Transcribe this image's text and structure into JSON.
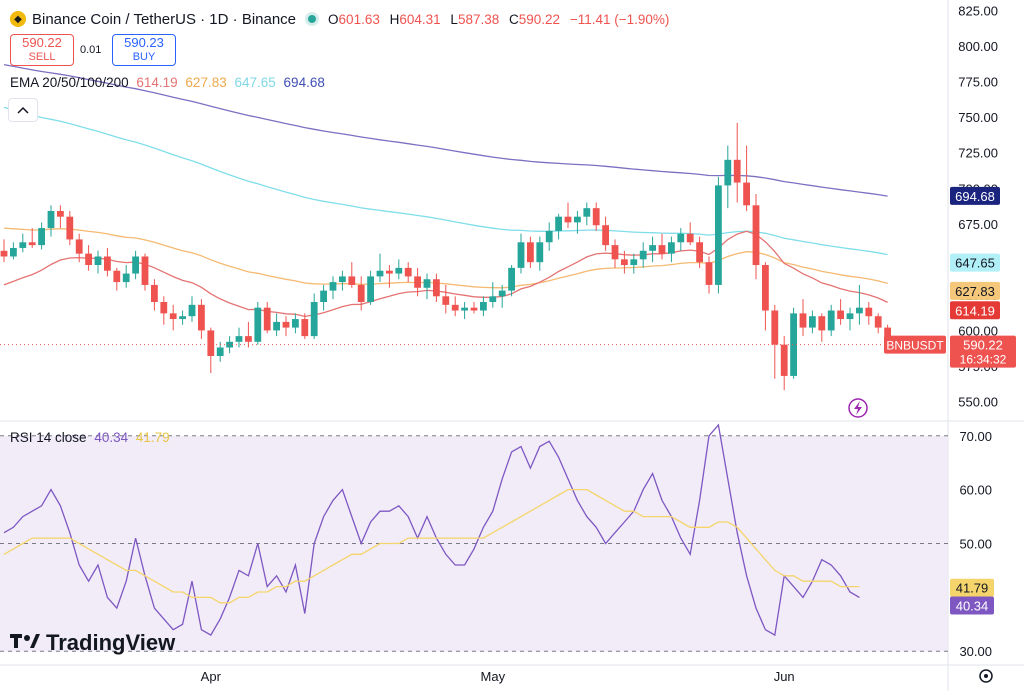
{
  "header": {
    "symbol_title": "Binance Coin / TetherUS · 1D · Binance",
    "ohlc": [
      {
        "k": "O",
        "v": "601.63"
      },
      {
        "k": "H",
        "v": "604.31"
      },
      {
        "k": "L",
        "v": "587.38"
      },
      {
        "k": "C",
        "v": "590.22"
      }
    ],
    "change": "−11.41 (−1.90%)"
  },
  "trade": {
    "sell_price": "590.22",
    "sell_label": "SELL",
    "spread": "0.01",
    "buy_price": "590.23",
    "buy_label": "BUY"
  },
  "ema_legend": {
    "label": "EMA 20/50/100/200",
    "v20": "614.19",
    "v50": "627.83",
    "v100": "647.65",
    "v200": "694.68"
  },
  "rsi_legend": {
    "label": "RSI 14 close",
    "rsi": "40.34",
    "ma": "41.79"
  },
  "brand": {
    "name": "TradingView"
  },
  "colors": {
    "up": "#26a69a",
    "down": "#ef5350",
    "ema20": "#e57373",
    "ema50": "#f5b971",
    "ema100": "#80deea",
    "ema200": "#7e6fc2",
    "rsi": "#7e57c2",
    "rsi_ma": "#f5d56b",
    "rsi_band": "#ede7f6"
  },
  "chart_data": [
    {
      "type": "candlestick",
      "title": "Binance Coin / TetherUS · 1D · Binance",
      "y_ticks": [
        "825.00",
        "800.00",
        "775.00",
        "750.00",
        "725.00",
        "700.00",
        "675.00",
        "650.00",
        "625.00",
        "600.00",
        "575.00",
        "550.00"
      ],
      "ylim": [
        537,
        831
      ],
      "x_labels": [
        {
          "label": "Apr",
          "index": 22
        },
        {
          "label": "May",
          "index": 52
        },
        {
          "label": "Jun",
          "index": 83
        }
      ],
      "ohlc": [
        [
          656,
          664,
          648,
          652
        ],
        [
          652,
          662,
          650,
          658
        ],
        [
          658,
          668,
          655,
          662
        ],
        [
          662,
          672,
          658,
          660
        ],
        [
          660,
          676,
          657,
          672
        ],
        [
          672,
          688,
          666,
          684
        ],
        [
          684,
          688,
          672,
          680
        ],
        [
          680,
          684,
          660,
          664
        ],
        [
          664,
          668,
          648,
          654
        ],
        [
          654,
          660,
          642,
          646
        ],
        [
          646,
          656,
          640,
          652
        ],
        [
          652,
          658,
          638,
          642
        ],
        [
          642,
          644,
          628,
          634
        ],
        [
          634,
          646,
          630,
          640
        ],
        [
          640,
          656,
          636,
          652
        ],
        [
          652,
          654,
          628,
          632
        ],
        [
          632,
          636,
          614,
          620
        ],
        [
          620,
          624,
          604,
          612
        ],
        [
          612,
          618,
          600,
          608
        ],
        [
          608,
          614,
          604,
          610
        ],
        [
          610,
          624,
          606,
          618
        ],
        [
          618,
          622,
          594,
          600
        ],
        [
          600,
          602,
          570,
          582
        ],
        [
          582,
          592,
          578,
          588
        ],
        [
          588,
          596,
          584,
          592
        ],
        [
          592,
          602,
          588,
          596
        ],
        [
          596,
          606,
          588,
          592
        ],
        [
          592,
          620,
          590,
          616
        ],
        [
          616,
          620,
          598,
          600
        ],
        [
          600,
          612,
          596,
          606
        ],
        [
          606,
          610,
          596,
          602
        ],
        [
          602,
          612,
          598,
          608
        ],
        [
          608,
          612,
          594,
          596
        ],
        [
          596,
          626,
          594,
          620
        ],
        [
          620,
          632,
          614,
          628
        ],
        [
          628,
          638,
          622,
          634
        ],
        [
          634,
          642,
          628,
          638
        ],
        [
          638,
          648,
          630,
          632
        ],
        [
          632,
          638,
          614,
          620
        ],
        [
          620,
          642,
          618,
          638
        ],
        [
          638,
          654,
          634,
          642
        ],
        [
          642,
          646,
          630,
          640
        ],
        [
          640,
          650,
          636,
          644
        ],
        [
          644,
          648,
          634,
          638
        ],
        [
          638,
          644,
          624,
          630
        ],
        [
          630,
          640,
          622,
          636
        ],
        [
          636,
          640,
          620,
          624
        ],
        [
          624,
          632,
          612,
          618
        ],
        [
          618,
          624,
          610,
          614
        ],
        [
          614,
          620,
          608,
          616
        ],
        [
          616,
          620,
          612,
          614
        ],
        [
          614,
          624,
          610,
          620
        ],
        [
          620,
          634,
          616,
          624
        ],
        [
          624,
          632,
          616,
          628
        ],
        [
          628,
          646,
          624,
          644
        ],
        [
          644,
          668,
          640,
          662
        ],
        [
          662,
          666,
          644,
          648
        ],
        [
          648,
          666,
          642,
          662
        ],
        [
          662,
          676,
          656,
          670
        ],
        [
          670,
          682,
          664,
          680
        ],
        [
          680,
          690,
          672,
          676
        ],
        [
          676,
          684,
          668,
          680
        ],
        [
          680,
          690,
          674,
          686
        ],
        [
          686,
          690,
          670,
          674
        ],
        [
          674,
          680,
          656,
          660
        ],
        [
          660,
          664,
          644,
          650
        ],
        [
          650,
          656,
          640,
          646
        ],
        [
          646,
          654,
          640,
          650
        ],
        [
          650,
          662,
          644,
          656
        ],
        [
          656,
          666,
          648,
          660
        ],
        [
          660,
          668,
          650,
          654
        ],
        [
          654,
          666,
          648,
          662
        ],
        [
          662,
          672,
          656,
          668
        ],
        [
          668,
          676,
          660,
          662
        ],
        [
          662,
          666,
          644,
          648
        ],
        [
          648,
          652,
          626,
          632
        ],
        [
          632,
          708,
          626,
          702
        ],
        [
          702,
          730,
          686,
          720
        ],
        [
          720,
          746,
          690,
          704
        ],
        [
          704,
          730,
          684,
          688
        ],
        [
          688,
          696,
          636,
          646
        ],
        [
          646,
          648,
          600,
          614
        ],
        [
          614,
          618,
          566,
          590
        ],
        [
          590,
          596,
          558,
          568
        ],
        [
          568,
          616,
          566,
          612
        ],
        [
          612,
          622,
          596,
          602
        ],
        [
          602,
          614,
          598,
          610
        ],
        [
          610,
          612,
          592,
          600
        ],
        [
          600,
          618,
          596,
          614
        ],
        [
          614,
          622,
          604,
          608
        ],
        [
          608,
          616,
          600,
          612
        ],
        [
          612,
          632,
          604,
          616
        ],
        [
          616,
          620,
          604,
          610
        ],
        [
          610,
          612,
          598,
          602
        ],
        [
          602,
          604,
          587,
          590
        ]
      ]
    },
    {
      "type": "line",
      "title": "RSI 14 close",
      "y_ticks": [
        "70.00",
        "60.00",
        "50.00",
        "40.00",
        "30.00"
      ],
      "ylim": [
        28,
        72
      ],
      "series": [
        {
          "name": "RSI",
          "values": [
            52,
            53,
            55,
            56,
            57,
            60,
            57,
            52,
            46,
            43,
            46,
            40,
            38,
            43,
            51,
            44,
            38,
            36,
            34,
            35,
            43,
            34,
            33,
            36,
            40,
            45,
            44,
            50,
            42,
            44,
            41,
            46,
            37,
            50,
            55,
            58,
            60,
            55,
            50,
            54,
            56,
            56,
            57,
            55,
            51,
            55,
            51,
            48,
            46,
            46,
            49,
            53,
            56,
            62,
            67,
            68,
            64,
            68,
            69,
            66,
            62,
            58,
            55,
            53,
            50,
            52,
            54,
            56,
            60,
            63,
            58,
            55,
            51,
            48,
            58,
            70,
            72,
            62,
            52,
            44,
            38,
            34,
            33,
            44,
            42,
            40,
            43,
            47,
            46,
            44,
            41,
            40
          ]
        },
        {
          "name": "MA",
          "values": [
            48,
            49,
            50,
            51,
            51,
            51,
            51,
            51,
            50,
            49,
            48,
            47,
            46,
            45,
            45,
            44,
            43,
            42,
            41,
            41,
            40,
            40,
            40,
            39,
            39,
            40,
            40,
            41,
            41,
            42,
            42,
            43,
            43,
            44,
            45,
            46,
            47,
            48,
            48,
            49,
            50,
            50,
            50,
            51,
            51,
            51,
            51,
            51,
            51,
            51,
            51,
            51,
            52,
            53,
            54,
            55,
            56,
            57,
            58,
            59,
            60,
            60,
            60,
            59,
            58,
            57,
            56,
            56,
            55,
            55,
            55,
            55,
            54,
            53,
            53,
            53,
            54,
            54,
            53,
            51,
            49,
            47,
            45,
            44,
            44,
            43,
            43,
            43,
            43,
            42,
            42,
            42
          ]
        }
      ],
      "labels": {
        "rsi_label": "40.34",
        "ma_label": "41.79"
      }
    }
  ],
  "axis_labels": {
    "ema20": "614.19",
    "ema50": "627.83",
    "ema100": "647.65",
    "ema200": "694.68",
    "price_symbol": "BNBUSDT",
    "price": "590.22",
    "countdown": "16:34:32"
  }
}
